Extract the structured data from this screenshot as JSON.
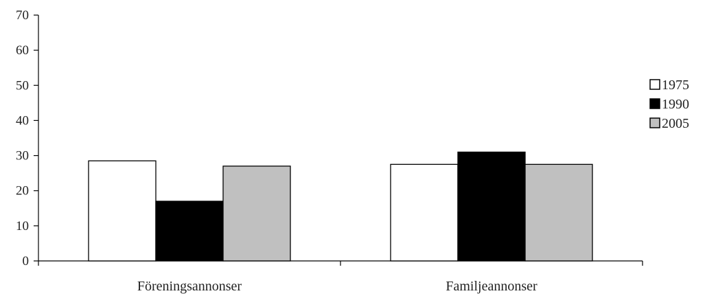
{
  "chart_data": {
    "type": "bar",
    "categories": [
      "Föreningsannonser",
      "Familjeannonser"
    ],
    "series": [
      {
        "name": "1975",
        "values": [
          28.5,
          27.5
        ],
        "color": "#ffffff"
      },
      {
        "name": "1990",
        "values": [
          17,
          31
        ],
        "color": "#000000"
      },
      {
        "name": "2005",
        "values": [
          27,
          27.5
        ],
        "color": "#c0c0c0"
      }
    ],
    "ylim": [
      0,
      70
    ],
    "yticks": [
      0,
      10,
      20,
      30,
      40,
      50,
      60,
      70
    ],
    "grid": false,
    "legend_position": "right",
    "title": "",
    "xlabel": "",
    "ylabel": ""
  }
}
